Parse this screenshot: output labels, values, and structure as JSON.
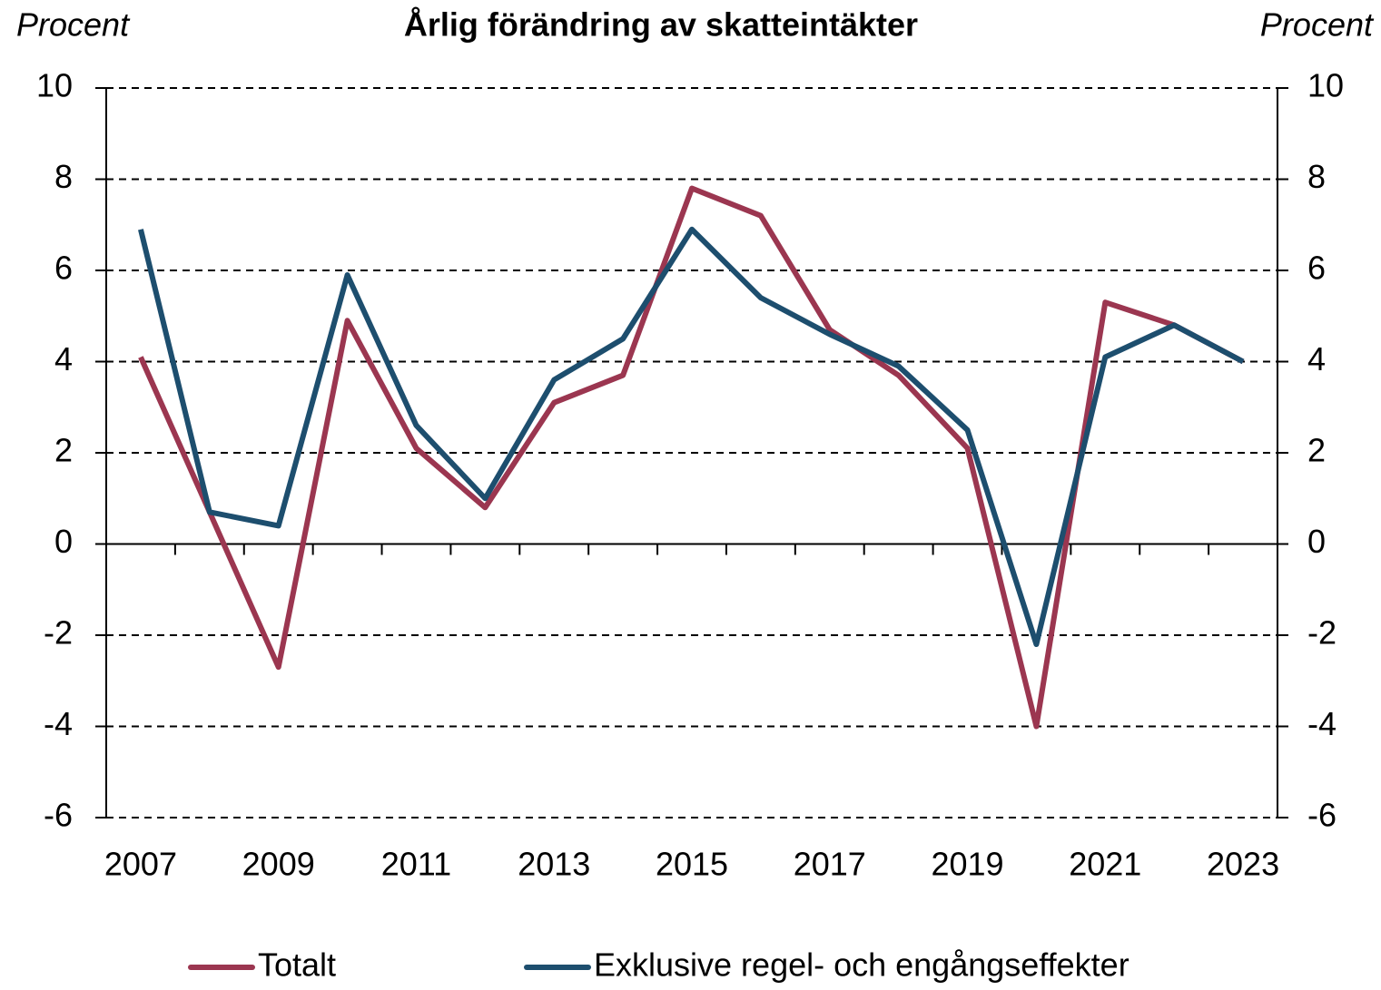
{
  "chart_data": {
    "type": "line",
    "title": "Årlig förändring av skatteintäkter",
    "y_label": "Procent",
    "y2_label": "Procent",
    "categories": [
      "2007",
      null,
      "2009",
      null,
      "2011",
      null,
      "2013",
      null,
      "2015",
      null,
      "2017",
      null,
      "2019",
      null,
      "2021",
      null,
      "2023"
    ],
    "series": [
      {
        "name": "Totalt",
        "color": "#9b3650",
        "values": [
          4.1,
          0.7,
          -2.7,
          4.9,
          2.1,
          0.8,
          3.1,
          3.7,
          7.8,
          7.2,
          4.7,
          3.7,
          2.1,
          -4.0,
          5.3,
          4.8,
          4.0
        ]
      },
      {
        "name": "Exklusive regel- och engångseffekter",
        "color": "#1d4e6e",
        "values": [
          6.9,
          0.7,
          0.4,
          5.9,
          2.6,
          1.0,
          3.6,
          4.5,
          6.9,
          5.4,
          4.6,
          3.9,
          2.5,
          -2.2,
          4.1,
          4.8,
          4.0
        ]
      }
    ],
    "ylim": [
      -6,
      10
    ],
    "yticks": [
      -6,
      -4,
      -2,
      0,
      2,
      4,
      6,
      8,
      10
    ],
    "y2lim": [
      -6,
      10
    ],
    "y2ticks": [
      -6,
      -4,
      -2,
      0,
      2,
      4,
      6,
      8,
      10
    ],
    "grid": true,
    "legend": "bottom"
  }
}
